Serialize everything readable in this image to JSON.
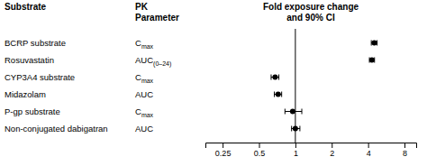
{
  "chart_data": {
    "type": "forest",
    "title": "Fold exposure change\nand 90% CI",
    "columns": [
      "Substrate",
      "PK\nParameter"
    ],
    "categories": [
      "BCRP substrate",
      "Rosuvastatin",
      "CYP3A4 substrate",
      "Midazolam",
      "P-gp substrate",
      "Non-conjugated dabigatran"
    ],
    "pk": [
      "C",
      "AUC",
      "C",
      "AUC",
      "C",
      "AUC"
    ],
    "pk_sub": [
      "max",
      "(0–24)",
      "max",
      null,
      "max",
      null
    ],
    "values": [
      4.5,
      4.3,
      0.68,
      0.72,
      0.95,
      1.0
    ],
    "ci_low": [
      4.25,
      4.1,
      0.63,
      0.67,
      0.82,
      0.93
    ],
    "ci_high": [
      4.75,
      4.52,
      0.73,
      0.77,
      1.13,
      1.09
    ],
    "vline": 1.0,
    "color": "#000000",
    "log": "x",
    "xlim": [
      0.18,
      10.0
    ],
    "xticks": [
      0.25,
      0.5,
      1,
      2,
      4,
      8
    ],
    "tick_labels": "x",
    "grid": false
  }
}
